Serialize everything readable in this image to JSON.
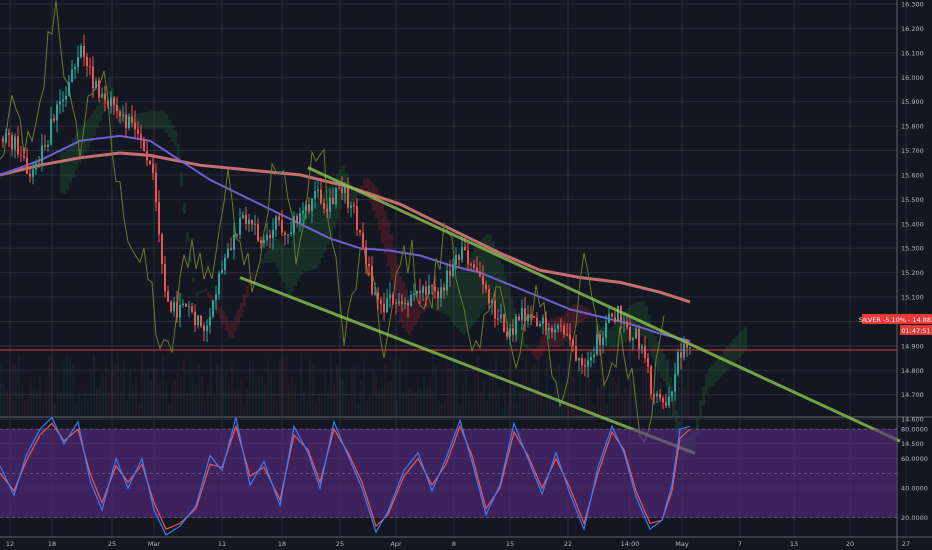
{
  "colors": {
    "background": "#131722",
    "grid": "#2a2e39",
    "separator": "#5d606b",
    "axis_text": "#b2b5be",
    "up_candle": "#26a69a",
    "down_candle": "#ef5350",
    "channel": "#8bc34a",
    "ma_fast": "#6f5fd6",
    "ma_slow": "#e57c7c",
    "price_line": "#e53935",
    "price_badge": "#e53935",
    "stoch_band": "#5b2a86",
    "stoch_k": "#3d7bf2",
    "stoch_d": "#e8585b",
    "cloud_red": "#8a1f2b",
    "cloud_green": "#1e5a2f"
  },
  "chart_data": [
    {
      "type": "candlestick",
      "instrument_badge": "SILVER -5.10% - 14.883",
      "countdown_badge": "01:47:51",
      "current_price": 14.883,
      "y_ticks": [
        "16.300",
        "16.200",
        "16.100",
        "16.000",
        "15.900",
        "15.800",
        "15.700",
        "15.600",
        "15.500",
        "15.400",
        "15.300",
        "15.200",
        "15.100",
        "15.000",
        "14.900",
        "14.800",
        "14.700",
        "14.600",
        "14.500"
      ],
      "ylim": [
        14.46,
        16.32
      ],
      "x_ticks": [
        "12",
        "18",
        "25",
        "Mar",
        "11",
        "18",
        "25",
        "Apr",
        "8",
        "15",
        "22",
        "14:00",
        "May",
        "7",
        "13",
        "20",
        "27"
      ],
      "price_path": [
        [
          0,
          15.75
        ],
        [
          14,
          15.72
        ],
        [
          28,
          15.62
        ],
        [
          38,
          15.65
        ],
        [
          52,
          15.82
        ],
        [
          64,
          15.93
        ],
        [
          74,
          16.03
        ],
        [
          82,
          16.12
        ],
        [
          92,
          15.98
        ],
        [
          104,
          15.92
        ],
        [
          120,
          15.85
        ],
        [
          136,
          15.78
        ],
        [
          150,
          15.65
        ],
        [
          160,
          15.25
        ],
        [
          168,
          15.02
        ],
        [
          178,
          15.06
        ],
        [
          190,
          15.03
        ],
        [
          204,
          14.99
        ],
        [
          214,
          15.12
        ],
        [
          224,
          15.28
        ],
        [
          236,
          15.38
        ],
        [
          248,
          15.42
        ],
        [
          262,
          15.3
        ],
        [
          276,
          15.4
        ],
        [
          290,
          15.38
        ],
        [
          304,
          15.45
        ],
        [
          316,
          15.55
        ],
        [
          326,
          15.48
        ],
        [
          338,
          15.56
        ],
        [
          350,
          15.48
        ],
        [
          362,
          15.32
        ],
        [
          372,
          15.12
        ],
        [
          382,
          15.05
        ],
        [
          394,
          15.1
        ],
        [
          406,
          15.08
        ],
        [
          420,
          15.12
        ],
        [
          436,
          15.1
        ],
        [
          450,
          15.2
        ],
        [
          462,
          15.28
        ],
        [
          474,
          15.22
        ],
        [
          486,
          15.1
        ],
        [
          498,
          15.0
        ],
        [
          510,
          14.95
        ],
        [
          520,
          15.02
        ],
        [
          534,
          14.98
        ],
        [
          548,
          15.0
        ],
        [
          562,
          14.97
        ],
        [
          574,
          14.88
        ],
        [
          584,
          14.85
        ],
        [
          596,
          14.92
        ],
        [
          608,
          15.0
        ],
        [
          618,
          15.05
        ],
        [
          628,
          14.96
        ],
        [
          640,
          14.92
        ],
        [
          650,
          14.72
        ],
        [
          660,
          14.64
        ],
        [
          668,
          14.68
        ],
        [
          674,
          14.8
        ],
        [
          680,
          14.88
        ],
        [
          690,
          14.88
        ]
      ],
      "ma_fast_path": [
        [
          0,
          15.6
        ],
        [
          40,
          15.66
        ],
        [
          80,
          15.74
        ],
        [
          120,
          15.76
        ],
        [
          150,
          15.74
        ],
        [
          180,
          15.66
        ],
        [
          210,
          15.58
        ],
        [
          240,
          15.52
        ],
        [
          270,
          15.46
        ],
        [
          300,
          15.4
        ],
        [
          330,
          15.34
        ],
        [
          360,
          15.3
        ],
        [
          390,
          15.29
        ],
        [
          420,
          15.27
        ],
        [
          450,
          15.23
        ],
        [
          480,
          15.2
        ],
        [
          510,
          15.15
        ],
        [
          540,
          15.1
        ],
        [
          570,
          15.05
        ],
        [
          600,
          15.02
        ],
        [
          630,
          14.99
        ],
        [
          660,
          14.95
        ],
        [
          690,
          14.92
        ]
      ],
      "ma_slow_path": [
        [
          0,
          15.6
        ],
        [
          40,
          15.64
        ],
        [
          80,
          15.67
        ],
        [
          120,
          15.69
        ],
        [
          150,
          15.68
        ],
        [
          200,
          15.64
        ],
        [
          250,
          15.62
        ],
        [
          300,
          15.6
        ],
        [
          350,
          15.55
        ],
        [
          400,
          15.48
        ],
        [
          450,
          15.38
        ],
        [
          500,
          15.28
        ],
        [
          540,
          15.21
        ],
        [
          580,
          15.18
        ],
        [
          620,
          15.16
        ],
        [
          660,
          15.12
        ],
        [
          690,
          15.08
        ]
      ],
      "channel_upper": [
        [
          308,
          15.63
        ],
        [
          900,
          14.51
        ]
      ],
      "channel_lower": [
        [
          240,
          15.18
        ],
        [
          695,
          14.46
        ]
      ]
    },
    {
      "type": "line",
      "indicator": "stochastic",
      "y_ticks": [
        "80.0000",
        "60.0000",
        "40.0000",
        "20.0000"
      ],
      "ylim": [
        0,
        100
      ],
      "band": [
        20,
        80
      ],
      "series": [
        {
          "values": [
            [
              0,
              55
            ],
            [
              14,
              35
            ],
            [
              26,
              62
            ],
            [
              40,
              80
            ],
            [
              52,
              88
            ],
            [
              64,
              70
            ],
            [
              78,
              85
            ],
            [
              90,
              45
            ],
            [
              102,
              25
            ],
            [
              116,
              60
            ],
            [
              128,
              40
            ],
            [
              142,
              60
            ],
            [
              154,
              25
            ],
            [
              166,
              8
            ],
            [
              180,
              14
            ],
            [
              196,
              28
            ],
            [
              210,
              62
            ],
            [
              222,
              52
            ],
            [
              236,
              88
            ],
            [
              250,
              42
            ],
            [
              264,
              58
            ],
            [
              280,
              28
            ],
            [
              294,
              82
            ],
            [
              308,
              64
            ],
            [
              320,
              40
            ],
            [
              334,
              85
            ],
            [
              348,
              62
            ],
            [
              362,
              40
            ],
            [
              376,
              10
            ],
            [
              388,
              24
            ],
            [
              404,
              52
            ],
            [
              418,
              64
            ],
            [
              432,
              38
            ],
            [
              446,
              60
            ],
            [
              460,
              86
            ],
            [
              472,
              58
            ],
            [
              486,
              22
            ],
            [
              500,
              42
            ],
            [
              514,
              84
            ],
            [
              528,
              60
            ],
            [
              542,
              36
            ],
            [
              556,
              64
            ],
            [
              570,
              36
            ],
            [
              584,
              12
            ],
            [
              598,
              54
            ],
            [
              612,
              82
            ],
            [
              624,
              64
            ],
            [
              636,
              34
            ],
            [
              650,
              12
            ],
            [
              662,
              18
            ],
            [
              672,
              42
            ],
            [
              680,
              80
            ],
            [
              690,
              82
            ]
          ]
        },
        {
          "values": [
            [
              0,
              50
            ],
            [
              14,
              38
            ],
            [
              26,
              58
            ],
            [
              40,
              76
            ],
            [
              52,
              84
            ],
            [
              64,
              72
            ],
            [
              78,
              80
            ],
            [
              90,
              50
            ],
            [
              102,
              30
            ],
            [
              116,
              55
            ],
            [
              128,
              44
            ],
            [
              142,
              56
            ],
            [
              154,
              30
            ],
            [
              166,
              12
            ],
            [
              180,
              16
            ],
            [
              196,
              26
            ],
            [
              210,
              56
            ],
            [
              222,
              54
            ],
            [
              236,
              82
            ],
            [
              250,
              48
            ],
            [
              264,
              54
            ],
            [
              280,
              32
            ],
            [
              294,
              76
            ],
            [
              308,
              66
            ],
            [
              320,
              44
            ],
            [
              334,
              80
            ],
            [
              348,
              64
            ],
            [
              362,
              44
            ],
            [
              376,
              14
            ],
            [
              388,
              22
            ],
            [
              404,
              48
            ],
            [
              418,
              60
            ],
            [
              432,
              42
            ],
            [
              446,
              56
            ],
            [
              460,
              82
            ],
            [
              472,
              62
            ],
            [
              486,
              26
            ],
            [
              500,
              40
            ],
            [
              514,
              78
            ],
            [
              528,
              62
            ],
            [
              542,
              40
            ],
            [
              556,
              60
            ],
            [
              570,
              40
            ],
            [
              584,
              16
            ],
            [
              598,
              50
            ],
            [
              612,
              78
            ],
            [
              624,
              66
            ],
            [
              636,
              38
            ],
            [
              650,
              16
            ],
            [
              662,
              18
            ],
            [
              672,
              38
            ],
            [
              680,
              74
            ],
            [
              690,
              80
            ]
          ]
        }
      ]
    }
  ]
}
